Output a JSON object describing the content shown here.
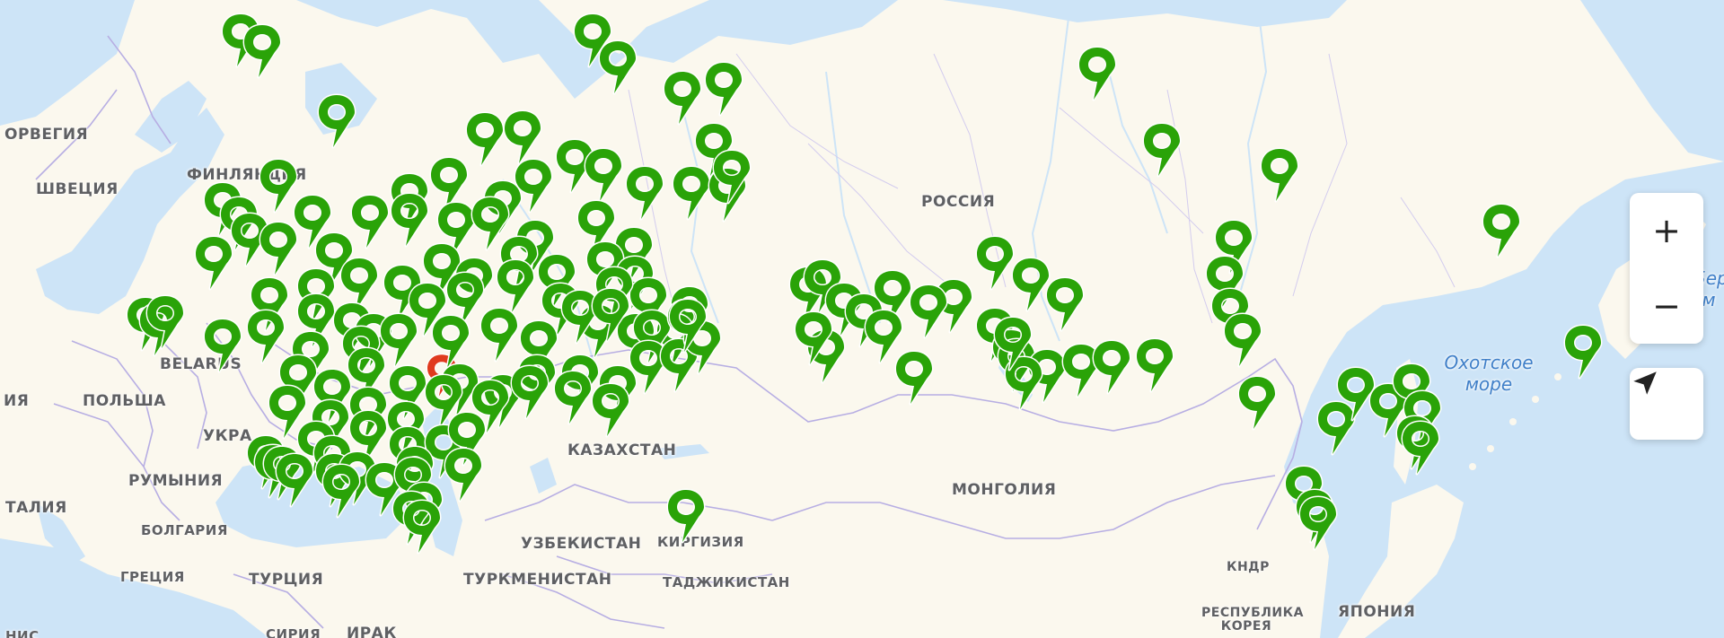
{
  "map": {
    "labels": {
      "norway": "ОРВЕГИЯ",
      "sweden": "ШВЕЦИЯ",
      "finland": "ФИНЛЯНДИЯ",
      "russia": "РОССИЯ",
      "belarus": "BELARUS",
      "poland": "ПОЛЬША",
      "ukraine": "УКРА",
      "romania": "РУМЫНИЯ",
      "italy": "ТАЛИЯ",
      "bulgaria": "БОЛГАРИЯ",
      "greece": "ГРЕЦИЯ",
      "turkey": "ТУРЦИЯ",
      "kazakhstan": "КАЗАХСТАН",
      "uzbekistan": "УЗБЕКИСТАН",
      "kyrgyzstan": "КИРГИЗИЯ",
      "turkmenistan": "ТУРКМЕНИСТАН",
      "tajikistan": "ТАДЖИКИСТАН",
      "mongolia": "МОНГОЛИЯ",
      "north_korea": "КНДР",
      "south_korea": "РЕСПУБЛИКА КОРЕЯ",
      "japan": "ЯПОНИЯ",
      "syria": "СИРИЯ",
      "iraq": "ИРАК",
      "tunisia": "НИС",
      "left_edge": "ИЯ",
      "sea_okhotsk": "Охотское море",
      "edge_right": "Бер м"
    },
    "marker_color": "#2aa308",
    "marker_outline": "#ffffff",
    "selected_marker_color": "#e03a1e",
    "marker_icon": "map-pin-icon"
  },
  "controls": {
    "zoom_in": "+",
    "zoom_out": "−",
    "zoom_in_icon": "plus-icon",
    "zoom_out_icon": "minus-icon",
    "locate_icon": "navigation-arrow-icon"
  }
}
